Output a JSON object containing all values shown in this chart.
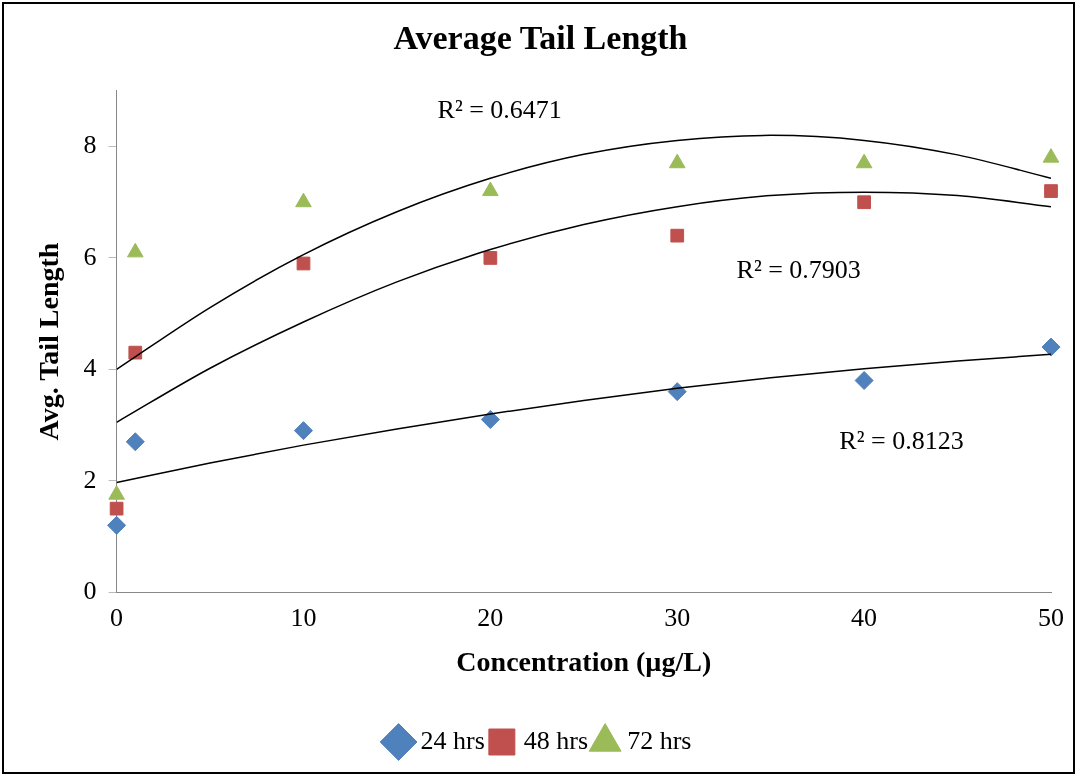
{
  "chart_data": {
    "type": "scatter",
    "title": "Average Tail Length",
    "xlabel": "Concentration (µg/L)",
    "ylabel": "Avg. Tail Length",
    "xlim": [
      0,
      50
    ],
    "xticks": [
      0,
      10,
      20,
      30,
      40,
      50
    ],
    "ylim": [
      0,
      9
    ],
    "yticks": [
      0,
      2,
      4,
      6,
      8
    ],
    "grid": false,
    "legend": "bottom",
    "series": [
      {
        "name": "24 hrs",
        "color": "#4f81bd",
        "marker": "diamond",
        "x": [
          0,
          1,
          10,
          20,
          30,
          40,
          50
        ],
        "values": [
          1.2,
          2.7,
          2.9,
          3.1,
          3.6,
          3.8,
          4.4
        ]
      },
      {
        "name": "48 hrs",
        "color": "#c0504d",
        "marker": "square",
        "x": [
          0,
          1,
          10,
          20,
          30,
          40,
          50
        ],
        "values": [
          1.5,
          4.3,
          5.9,
          6.0,
          6.4,
          7.0,
          7.2
        ]
      },
      {
        "name": "72 hrs",
        "color": "#9bbb59",
        "marker": "triangle",
        "x": [
          0,
          1,
          10,
          20,
          30,
          40,
          50
        ],
        "values": [
          1.75,
          6.1,
          7.0,
          7.2,
          7.7,
          7.7,
          7.8
        ]
      },
      {
        "type": "line",
        "color": "#000000",
        "marker": "none",
        "x": [
          0,
          5,
          10,
          15,
          20,
          25,
          30,
          35,
          40,
          45,
          50
        ],
        "values": [
          1.97,
          2.32,
          2.64,
          2.93,
          3.2,
          3.44,
          3.66,
          3.85,
          4.01,
          4.15,
          4.27
        ]
      },
      {
        "type": "line",
        "color": "#000000",
        "marker": "none",
        "x": [
          0,
          5,
          10,
          15,
          20,
          25,
          30,
          35,
          40,
          45,
          50
        ],
        "values": [
          3.05,
          4.02,
          4.85,
          5.57,
          6.15,
          6.6,
          6.92,
          7.12,
          7.18,
          7.12,
          6.92
        ]
      },
      {
        "type": "line",
        "color": "#000000",
        "marker": "none",
        "x": [
          0,
          5,
          10,
          15,
          20,
          25,
          30,
          35,
          40,
          45,
          50
        ],
        "values": [
          4.0,
          5.11,
          6.06,
          6.83,
          7.43,
          7.86,
          8.11,
          8.2,
          8.11,
          7.85,
          7.43
        ]
      }
    ],
    "annotations": [
      "R² = 0.6471",
      "R² = 0.7903",
      "R² = 0.8123"
    ]
  }
}
